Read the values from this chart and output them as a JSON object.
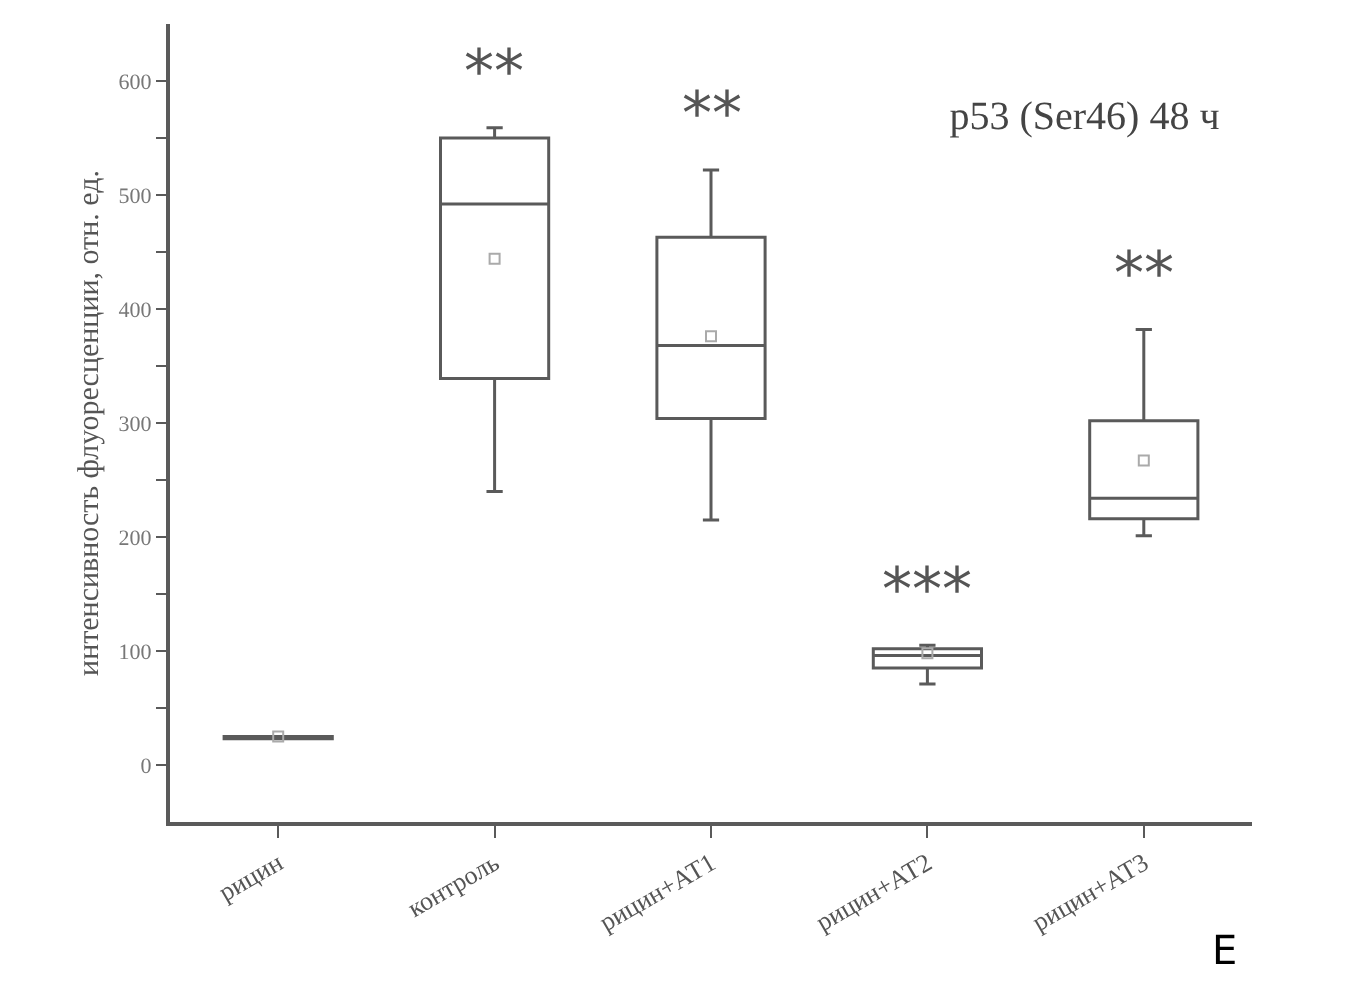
{
  "chart_data": {
    "type": "box",
    "title": "p53 (Ser46) 48 ч",
    "ylabel": "интенсивность флуоресценции, отн. ед.",
    "categories": [
      "рицин",
      "контроль",
      "рицин+АТ1",
      "рицин+АТ2",
      "рицин+АТ3"
    ],
    "color": "#5a5a5a",
    "boxes": [
      {
        "low": 23,
        "q1": 23,
        "median": 24,
        "q3": 25,
        "high": 25,
        "mean": 25
      },
      {
        "low": 240,
        "q1": 339,
        "median": 492,
        "q3": 550,
        "high": 559,
        "mean": 444
      },
      {
        "low": 215,
        "q1": 304,
        "median": 368,
        "q3": 463,
        "high": 522,
        "mean": 376
      },
      {
        "low": 71,
        "q1": 85,
        "median": 96,
        "q3": 102,
        "high": 105,
        "mean": 98
      },
      {
        "low": 201,
        "q1": 216,
        "median": 234,
        "q3": 302,
        "high": 382,
        "mean": 267
      }
    ],
    "ylim": [
      -50,
      650
    ],
    "yticks": [
      0,
      {
        "value": 50,
        "label": null
      },
      100,
      {
        "value": 150,
        "label": null
      },
      200,
      {
        "value": 250,
        "label": null
      },
      300,
      {
        "value": 350,
        "label": null
      },
      400,
      {
        "value": 450,
        "label": null
      },
      500,
      {
        "value": 550,
        "label": null
      },
      600
    ],
    "annotations": [
      {
        "text": "**",
        "x": "контроль",
        "y": 559
      },
      {
        "text": "**",
        "x": "рицин+АТ1",
        "y": 522
      },
      {
        "text": "***",
        "x": "рицин+АТ2",
        "y": 105
      },
      {
        "text": "**",
        "x": "рицин+АТ3",
        "y": 382
      },
      "E"
    ]
  }
}
